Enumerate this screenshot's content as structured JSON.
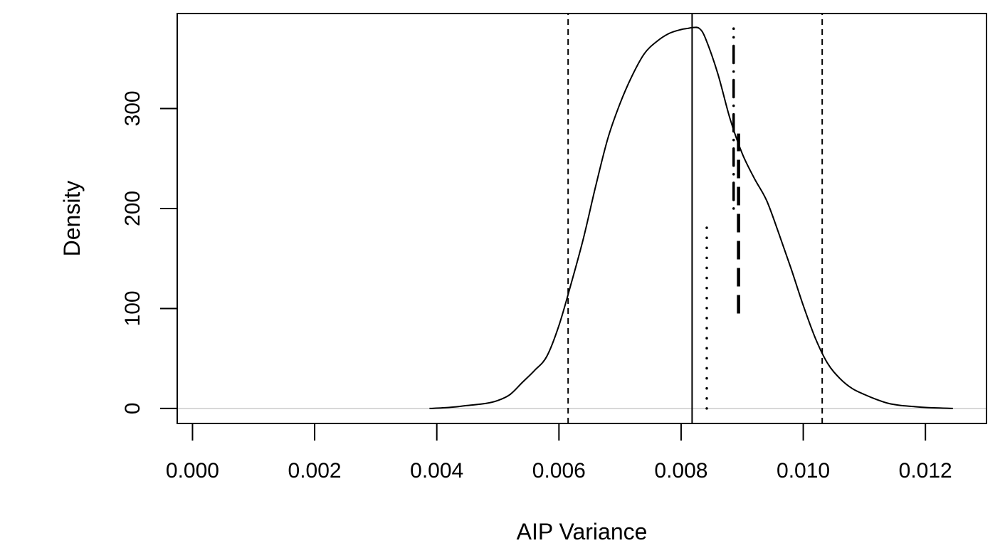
{
  "chart_data": {
    "type": "line",
    "title": "",
    "xlabel": "AIP Variance",
    "ylabel": "Density",
    "xlim": [
      -0.00025,
      0.013
    ],
    "ylim": [
      -15,
      395
    ],
    "x_ticks": [
      0.0,
      0.002,
      0.004,
      0.006,
      0.008,
      0.01,
      0.012
    ],
    "x_tick_labels": [
      "0.000",
      "0.002",
      "0.004",
      "0.006",
      "0.008",
      "0.010",
      "0.012"
    ],
    "y_ticks": [
      0,
      100,
      200,
      300
    ],
    "y_tick_labels": [
      "0",
      "100",
      "200",
      "300"
    ],
    "grid": false,
    "legend": "none",
    "baseline": {
      "y": 0,
      "color": "#cccccc"
    },
    "series": [
      {
        "style": "solid",
        "color": "#000000",
        "x": [
          0.00388,
          0.0042,
          0.0045,
          0.0048,
          0.005,
          0.0052,
          0.0054,
          0.0056,
          0.0058,
          0.006,
          0.0062,
          0.0064,
          0.0066,
          0.0068,
          0.007,
          0.0072,
          0.0074,
          0.0076,
          0.0078,
          0.008,
          0.0081,
          0.0082,
          0.0083,
          0.0084,
          0.0086,
          0.0088,
          0.009,
          0.0092,
          0.0094,
          0.0096,
          0.0098,
          0.01,
          0.0102,
          0.0104,
          0.0106,
          0.0108,
          0.011,
          0.0112,
          0.0114,
          0.0116,
          0.0118,
          0.012,
          0.01245
        ],
        "y": [
          0,
          1,
          3,
          5,
          8,
          14,
          26,
          38,
          52,
          83,
          125,
          170,
          222,
          270,
          305,
          333,
          355,
          367,
          375,
          379,
          380,
          381,
          380,
          370,
          335,
          290,
          255,
          230,
          208,
          175,
          140,
          103,
          70,
          45,
          30,
          20,
          14,
          9,
          5,
          3,
          2,
          1,
          0
        ]
      }
    ],
    "vertical_lines": [
      {
        "x": 0.00615,
        "y_range": [
          -15,
          395
        ],
        "style": "dashed"
      },
      {
        "x": 0.00818,
        "y_range": [
          -15,
          395
        ],
        "style": "solid"
      },
      {
        "x": 0.01031,
        "y_range": [
          -15,
          395
        ],
        "style": "dashed"
      },
      {
        "x": 0.00842,
        "y_range": [
          0,
          185
        ],
        "style": "dotted"
      },
      {
        "x": 0.00886,
        "y_range": [
          200,
          380
        ],
        "style": "dotdash"
      },
      {
        "x": 0.00894,
        "y_range": [
          95,
          275
        ],
        "style": "longdash"
      }
    ]
  }
}
